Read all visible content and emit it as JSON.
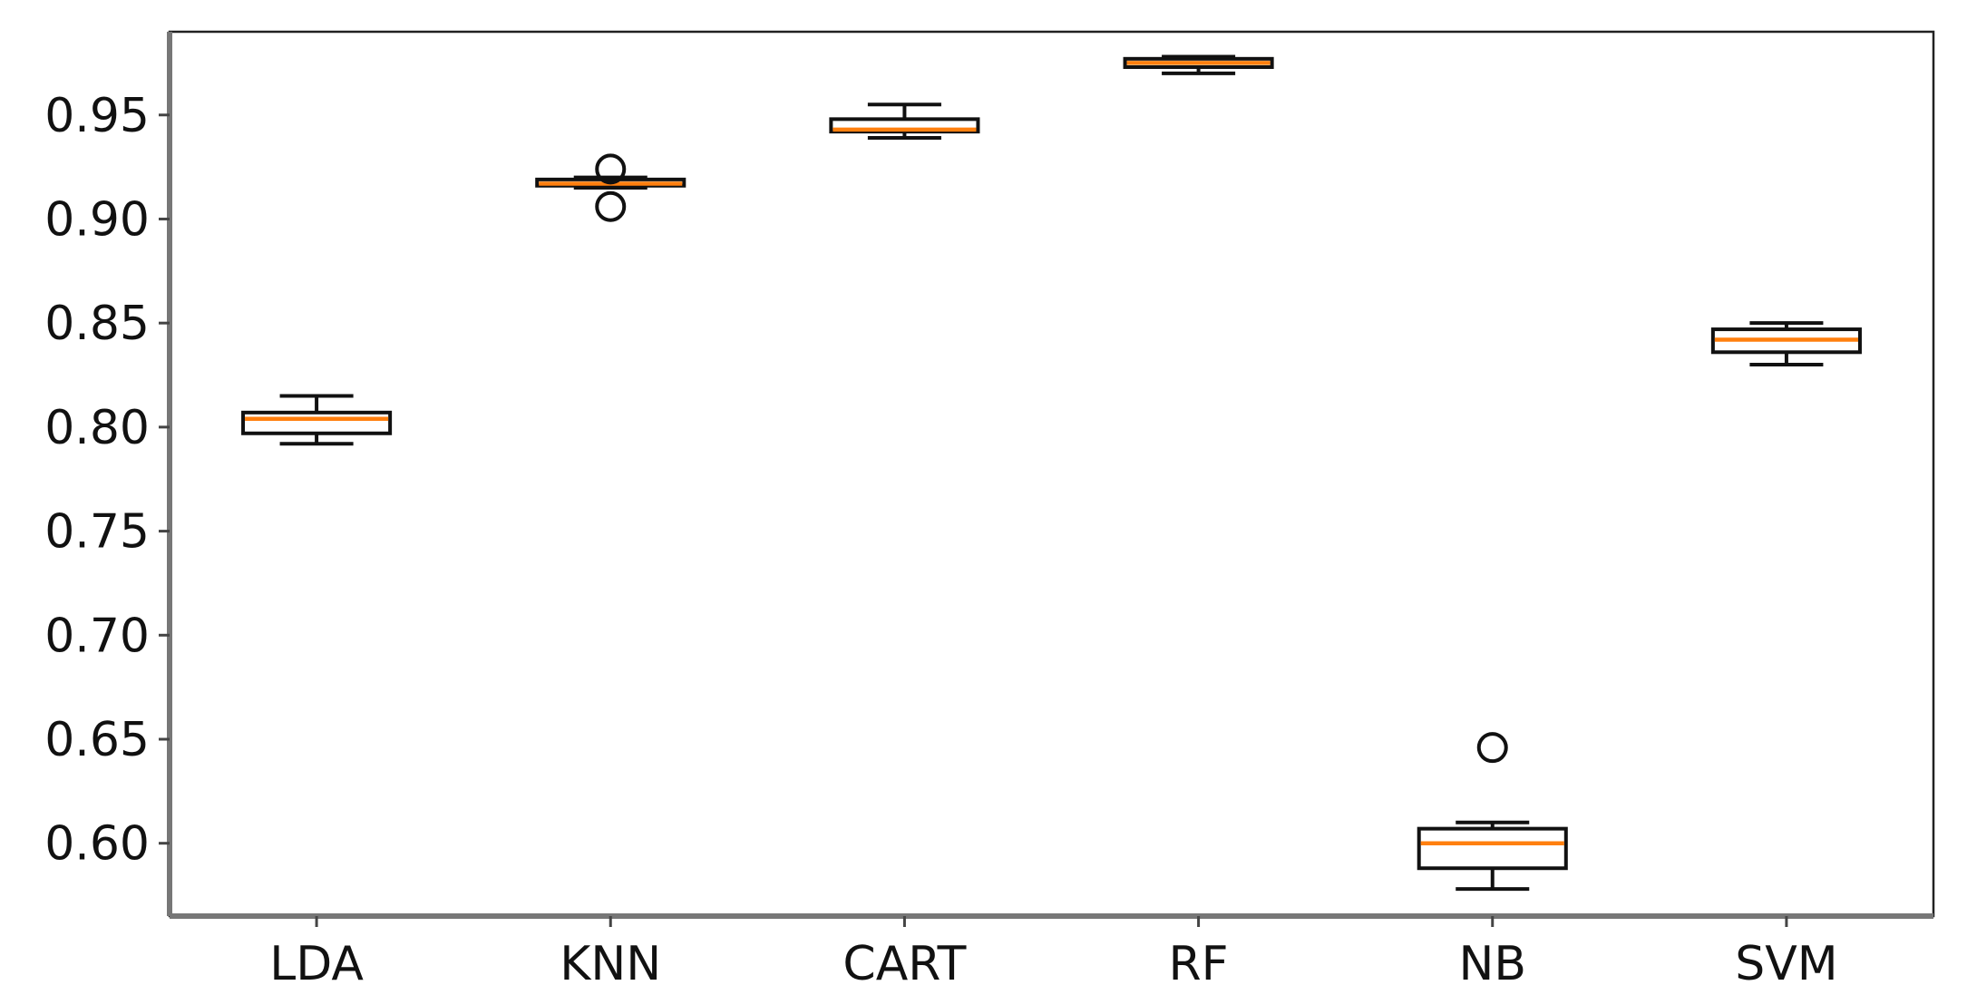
{
  "chart_data": {
    "type": "box",
    "categories": [
      "LDA",
      "KNN",
      "CART",
      "RF",
      "NB",
      "SVM"
    ],
    "boxes": [
      {
        "label": "LDA",
        "whislo": 0.792,
        "q1": 0.797,
        "med": 0.804,
        "q3": 0.807,
        "whishi": 0.815,
        "fliers": []
      },
      {
        "label": "KNN",
        "whislo": 0.915,
        "q1": 0.916,
        "med": 0.917,
        "q3": 0.919,
        "whishi": 0.92,
        "fliers": [
          0.924,
          0.906
        ]
      },
      {
        "label": "CART",
        "whislo": 0.939,
        "q1": 0.942,
        "med": 0.943,
        "q3": 0.948,
        "whishi": 0.955,
        "fliers": []
      },
      {
        "label": "RF",
        "whislo": 0.97,
        "q1": 0.973,
        "med": 0.975,
        "q3": 0.977,
        "whishi": 0.978,
        "fliers": []
      },
      {
        "label": "NB",
        "whislo": 0.578,
        "q1": 0.588,
        "med": 0.6,
        "q3": 0.607,
        "whishi": 0.61,
        "fliers": [
          0.646
        ]
      },
      {
        "label": "SVM",
        "whislo": 0.83,
        "q1": 0.836,
        "med": 0.842,
        "q3": 0.847,
        "whishi": 0.85,
        "fliers": []
      }
    ],
    "yticks": [
      "0.60",
      "0.65",
      "0.70",
      "0.75",
      "0.80",
      "0.85",
      "0.90",
      "0.95"
    ],
    "ylim": [
      0.565,
      0.99
    ],
    "title": "",
    "xlabel": "",
    "ylabel": "",
    "grid": false,
    "colors": {
      "median": "#ff7f0e",
      "box_edge": "#111111",
      "frame": "#222222"
    }
  }
}
